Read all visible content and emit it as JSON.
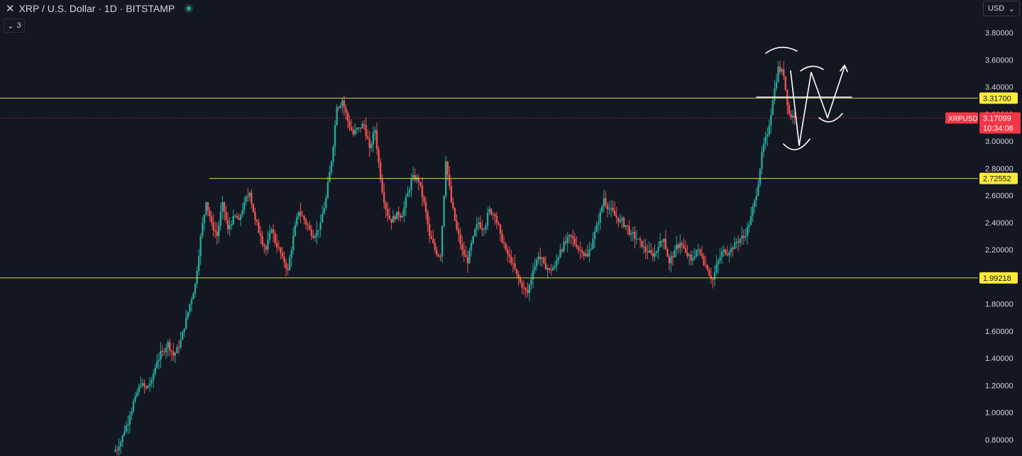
{
  "header": {
    "symbol": "XRP / U.S. Dollar · 1D · BITSTAMP",
    "indicators_count": "3",
    "currency": "USD"
  },
  "colors": {
    "background": "#131722",
    "up": "#26a69a",
    "down": "#ef5350",
    "hline": "#d4d44a",
    "current_price": "#f23645",
    "drawing": "#ffffff"
  },
  "chart_data": {
    "type": "candlestick",
    "symbol": "XRPUSD",
    "exchange": "BITSTAMP",
    "interval": "1D",
    "y_axis": {
      "ticks": [
        "3.80000",
        "3.60000",
        "3.40000",
        "3.20000",
        "3.00000",
        "2.80000",
        "2.60000",
        "2.40000",
        "2.20000",
        "2.00000",
        "1.80000",
        "1.60000",
        "1.40000",
        "1.20000",
        "1.00000",
        "0.80000"
      ],
      "range": [
        0.72,
        3.92
      ],
      "position": "right"
    },
    "horizontal_levels": [
      {
        "label": "3.31700",
        "price": 3.317,
        "full_width": true
      },
      {
        "label": "2.72552",
        "price": 2.7255,
        "full_width": false
      },
      {
        "label": "1.99218",
        "price": 1.9922,
        "full_width": true
      }
    ],
    "current_price": {
      "ticker": "XRPUSD",
      "label": "3.17099",
      "price": 3.171,
      "countdown": "10:34:08"
    },
    "close_series": [
      0.75,
      0.86,
      0.98,
      1.12,
      1.2,
      1.18,
      1.24,
      1.38,
      1.45,
      1.52,
      1.42,
      1.48,
      1.62,
      1.8,
      1.95,
      2.3,
      2.55,
      2.4,
      2.3,
      2.55,
      2.35,
      2.45,
      2.42,
      2.55,
      2.62,
      2.42,
      2.3,
      2.2,
      2.35,
      2.22,
      2.15,
      2.05,
      2.3,
      2.48,
      2.42,
      2.35,
      2.3,
      2.4,
      2.58,
      2.85,
      3.25,
      3.3,
      3.15,
      3.05,
      3.1,
      3.12,
      2.95,
      3.08,
      2.72,
      2.5,
      2.4,
      2.48,
      2.45,
      2.62,
      2.75,
      2.7,
      2.55,
      2.3,
      2.2,
      2.15,
      2.85,
      2.55,
      2.35,
      2.2,
      2.1,
      2.3,
      2.4,
      2.35,
      2.5,
      2.45,
      2.32,
      2.2,
      2.1,
      2.02,
      1.92,
      1.88,
      2.05,
      2.15,
      2.1,
      2.05,
      2.08,
      2.2,
      2.25,
      2.3,
      2.22,
      2.18,
      2.15,
      2.28,
      2.4,
      2.58,
      2.5,
      2.45,
      2.42,
      2.38,
      2.32,
      2.28,
      2.22,
      2.18,
      2.15,
      2.22,
      2.28,
      2.1,
      2.2,
      2.25,
      2.18,
      2.12,
      2.2,
      2.15,
      2.05,
      1.98,
      2.12,
      2.2,
      2.18,
      2.25,
      2.28,
      2.3,
      2.45,
      2.6,
      2.92,
      3.05,
      3.3,
      3.55,
      3.48,
      3.2,
      3.17
    ]
  }
}
